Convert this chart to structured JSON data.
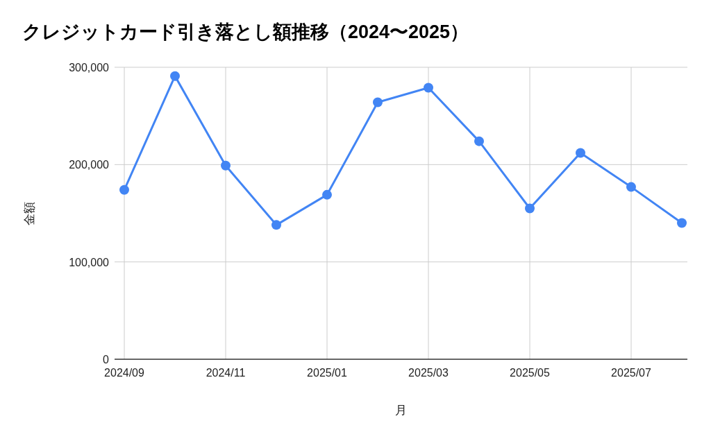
{
  "chart_data": {
    "type": "line",
    "title": "クレジットカード引き落とし額推移（2024〜2025）",
    "xlabel": "月",
    "ylabel": "金額",
    "categories": [
      "2024/09",
      null,
      "2024/11",
      null,
      "2025/01",
      null,
      "2025/03",
      null,
      "2025/05",
      null,
      "2025/07",
      null
    ],
    "series": [
      {
        "color": "#4285f4",
        "values": [
          174000,
          291000,
          199000,
          138000,
          169000,
          264000,
          279000,
          224000,
          155000,
          212000,
          177000,
          140000
        ]
      }
    ],
    "ylim": [
      0,
      300000
    ],
    "yticks": [
      0,
      {
        "value": 100000,
        "label": "100,000"
      },
      {
        "value": 200000,
        "label": "200,000"
      },
      {
        "value": 300000,
        "label": "300,000"
      }
    ],
    "grid": true,
    "marker": "circle",
    "line_style": "solid"
  }
}
